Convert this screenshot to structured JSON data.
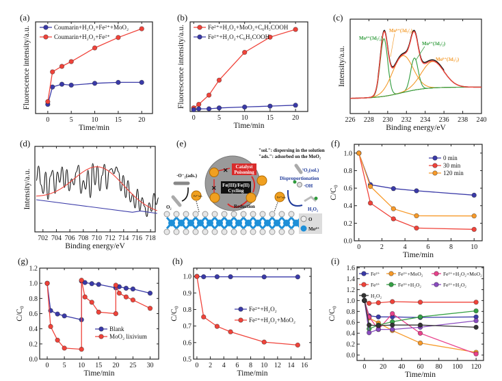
{
  "panel_labels": {
    "a": "(a)",
    "b": "(b)",
    "c": "(c)",
    "d": "(d)",
    "e": "(e)",
    "f": "(f)",
    "g": "(g)",
    "h": "(h)",
    "i": "(i)"
  },
  "chart_data": [
    {
      "panel": "a",
      "type": "line",
      "xlabel": "Time/min",
      "ylabel": "Fluorescence intensity/a.u.",
      "xlim": [
        -2.6,
        22.3
      ],
      "ylim": [
        0,
        100
      ],
      "x_ticks": [
        0,
        5,
        10,
        15,
        20
      ],
      "y_ticks": [],
      "legend": "top-left",
      "series": [
        {
          "name": "Coumarin+H₂O₂+Fe²⁺+MoO₂",
          "color": "#3a3aa8",
          "x": [
            0,
            1,
            3,
            5,
            10,
            15,
            20
          ],
          "y": [
            10,
            29,
            32,
            31,
            33,
            34,
            34
          ]
        },
        {
          "name": "Coumarin+H₂O₂+Fe²⁺",
          "color": "#f0433a",
          "x": [
            0,
            1,
            3,
            5,
            10,
            15,
            20
          ],
          "y": [
            13,
            45.5,
            51.5,
            56.7,
            71.6,
            83,
            92.5
          ]
        }
      ]
    },
    {
      "panel": "b",
      "type": "line",
      "xlabel": "Time/min",
      "ylabel": "Fluorescence intensity/a.u.",
      "xlim": [
        -0.7,
        22.4
      ],
      "ylim": [
        0,
        100
      ],
      "x_ticks": [
        0,
        5,
        10,
        15,
        20
      ],
      "y_ticks": [],
      "legend": "top-left",
      "series": [
        {
          "name": "Fe²⁺+H₂O₂+MoO₂+C₆H₅COOH",
          "color": "#f0433a",
          "x": [
            0,
            1,
            3,
            5,
            10,
            15,
            20
          ],
          "y": [
            4,
            8,
            18.3,
            35,
            66,
            83,
            91.6
          ]
        },
        {
          "name": "Fe²⁺+H₂O₂+C₆H₅COOH",
          "color": "#3a3aa8",
          "x": [
            0,
            1,
            3,
            5,
            10,
            15,
            20
          ],
          "y": [
            2,
            3,
            3,
            4,
            5,
            6,
            7
          ]
        }
      ]
    },
    {
      "panel": "c",
      "type": "line",
      "xlabel": "Binding energy/eV",
      "ylabel": "Intensity/a.u.",
      "xlim": [
        226,
        240
      ],
      "ylim": [
        0,
        100
      ],
      "x_ticks": [
        226,
        228,
        230,
        232,
        234,
        236,
        238,
        240
      ],
      "y_ticks": [],
      "background": {
        "low": 16,
        "high": 28,
        "center": 231.5,
        "width": 1.3,
        "color": "#3a9a3a"
      },
      "envelope_colors": {
        "raw": "#111111",
        "fit": "#f0433a"
      },
      "components": [
        {
          "label": "Mo⁴⁺(3d₅/₂)",
          "color": "#2e9a3a",
          "center": 229.6,
          "height": 61,
          "sigma": 0.4
        },
        {
          "label": "Mo⁶⁺(3d₅/₂)",
          "color": "#f39a2a",
          "center": 231.6,
          "height": 39,
          "sigma": 1.1
        },
        {
          "label": "Mo⁴⁺(3d₃/₂)",
          "color": "#2e9a3a",
          "center": 232.85,
          "height": 34,
          "sigma": 0.4
        },
        {
          "label": "Mo⁶⁺(3d₃/₂)",
          "color": "#f39a2a",
          "center": 234.8,
          "height": 28,
          "sigma": 1.2
        }
      ]
    },
    {
      "panel": "d",
      "type": "line",
      "xlabel": "Binding energy/eV",
      "ylabel": "Intensity/a.u.",
      "xlim": [
        700.8,
        718.7
      ],
      "ylim": [
        0,
        100
      ],
      "x_ticks": [
        702,
        704,
        706,
        708,
        710,
        712,
        714,
        716,
        718
      ],
      "y_ticks": [],
      "raw": {
        "color": "#111111",
        "x_start": 701,
        "x_step": 0.35,
        "y": [
          60,
          77,
          55,
          45,
          70,
          38,
          65,
          72,
          45,
          70,
          58,
          76,
          52,
          73,
          48,
          62,
          55,
          70,
          78,
          45,
          60,
          50,
          72,
          40,
          80,
          55,
          77,
          48,
          66,
          79,
          50,
          72,
          74,
          68,
          76,
          70,
          48,
          66,
          40,
          60,
          35,
          44,
          28,
          50,
          25,
          40,
          30,
          18,
          34,
          24,
          45,
          32,
          40
        ]
      },
      "fit": {
        "color": "#f0433a",
        "center": 710.3,
        "amplitude": 45.3,
        "sigma": 3.7,
        "baseline": [
          [
            701,
            40
          ],
          [
            719,
            22
          ]
        ]
      },
      "baseline": {
        "color": "#3a3aa8",
        "x": [
          701,
          715.3,
          716.5,
          719
        ],
        "y": [
          37.6,
          23,
          24.5,
          21.6
        ]
      }
    },
    {
      "panel": "f",
      "type": "line",
      "xlabel": "Time/min",
      "ylabel": "C/C₀",
      "xlim": [
        -0.4,
        10.7
      ],
      "ylim": [
        0,
        1.1
      ],
      "x_ticks": [
        0,
        2,
        4,
        6,
        8,
        10
      ],
      "y_ticks": [
        0.0,
        0.2,
        0.4,
        0.6,
        0.8,
        1.0
      ],
      "legend": "top-right",
      "series": [
        {
          "name": "0 min",
          "color": "#3a3aa8",
          "x": [
            0,
            1,
            3,
            5,
            10
          ],
          "y": [
            1.0,
            0.64,
            0.595,
            0.57,
            0.52
          ]
        },
        {
          "name": "30 min",
          "color": "#f0433a",
          "x": [
            0,
            1,
            3,
            5,
            10
          ],
          "y": [
            1.0,
            0.43,
            0.25,
            0.145,
            0.13
          ]
        },
        {
          "name": "120 min",
          "color": "#f79a2a",
          "x": [
            0,
            1,
            3,
            5,
            10
          ],
          "y": [
            1.0,
            0.62,
            0.365,
            0.285,
            0.283
          ]
        }
      ]
    },
    {
      "panel": "g",
      "type": "line",
      "xlabel": "Time/min",
      "ylabel": "C/C₀",
      "xlim": [
        -2.2,
        32.5
      ],
      "ylim": [
        0,
        1.2
      ],
      "x_ticks": [
        0,
        5,
        10,
        15,
        20,
        25,
        30
      ],
      "y_ticks": [
        0.0,
        0.2,
        0.4,
        0.6,
        0.8,
        1.0,
        1.2
      ],
      "legend": "bottom-right",
      "series": [
        {
          "name": "Blank",
          "color": "#3a3aa8",
          "x": [
            0,
            1,
            3,
            5,
            10,
            10,
            11,
            13,
            15,
            20,
            21,
            23,
            25,
            30
          ],
          "y": [
            1.0,
            0.64,
            0.595,
            0.57,
            0.52,
            1.03,
            1.01,
            0.995,
            0.985,
            0.94,
            0.955,
            0.935,
            0.925,
            0.87
          ]
        },
        {
          "name": "MoO₂ lixivium",
          "color": "#f0433a",
          "x": [
            0,
            1,
            3,
            5,
            10,
            10,
            11,
            13,
            15,
            20,
            20,
            21,
            23,
            25,
            30
          ],
          "y": [
            1.0,
            0.43,
            0.25,
            0.145,
            0.13,
            1.04,
            0.82,
            0.75,
            0.62,
            0.6,
            0.975,
            0.87,
            0.82,
            0.78,
            0.67
          ]
        }
      ]
    },
    {
      "panel": "h",
      "type": "line",
      "xlabel": "Time/min",
      "ylabel": "C/C₀",
      "xlim": [
        -0.5,
        17
      ],
      "ylim": [
        0.5,
        1.05
      ],
      "x_ticks": [
        0,
        2,
        4,
        6,
        8,
        10,
        12,
        14,
        16
      ],
      "y_ticks": [
        0.5,
        0.6,
        0.7,
        0.8,
        0.9,
        1.0
      ],
      "legend": "center-right",
      "series": [
        {
          "name": "Fe²⁺+H₂O₂",
          "color": "#3a3aa8",
          "x": [
            0,
            1,
            3,
            5,
            10,
            15
          ],
          "y": [
            1.0,
            0.998,
            0.998,
            0.998,
            0.997,
            0.997
          ]
        },
        {
          "name": "Fe²⁺+H₂O₂+MoO₂",
          "color": "#f0433a",
          "x": [
            0,
            1,
            3,
            5,
            10,
            15
          ],
          "y": [
            1.0,
            0.755,
            0.698,
            0.665,
            0.603,
            0.585
          ]
        }
      ]
    },
    {
      "panel": "i",
      "type": "line",
      "xlabel": "Time/min",
      "ylabel": "C/C₀",
      "xlim": [
        -8,
        128
      ],
      "ylim": [
        -0.1,
        1.62
      ],
      "x_ticks": [
        0,
        20,
        40,
        60,
        80,
        100,
        120
      ],
      "y_ticks": [
        0.0,
        0.2,
        0.4,
        0.6,
        0.8,
        1.0,
        1.2,
        1.4,
        1.6
      ],
      "legend": "top",
      "series": [
        {
          "name": "Fe²⁺",
          "color": "#3a3aa8",
          "x": [
            0,
            5,
            15,
            30,
            60,
            120
          ],
          "y": [
            1.0,
            0.72,
            0.7,
            0.7,
            0.69,
            0.7
          ]
        },
        {
          "name": "Fe²⁺+MoO₂",
          "color": "#f79a2a",
          "x": [
            0,
            5,
            15,
            30,
            60,
            120
          ],
          "y": [
            1.0,
            0.68,
            0.59,
            0.45,
            0.22,
            0.05
          ]
        },
        {
          "name": "Fe²⁺+H₂O₂+MoO₂",
          "color": "#e8428c",
          "x": [
            0,
            5,
            15,
            30,
            60,
            120
          ],
          "y": [
            1.0,
            0.7,
            0.47,
            0.76,
            0.4,
            0.02
          ]
        },
        {
          "name": "Fe³⁺",
          "color": "#f0433a",
          "x": [
            0,
            5,
            15,
            30,
            60,
            120
          ],
          "y": [
            1.0,
            0.95,
            0.96,
            0.98,
            0.97,
            0.97
          ]
        },
        {
          "name": "Fe³⁺+H₂O₂",
          "color": "#35a045",
          "x": [
            0,
            5,
            15,
            30,
            60,
            120
          ],
          "y": [
            1.0,
            0.48,
            0.55,
            0.61,
            0.7,
            0.81
          ]
        },
        {
          "name": "Fe²⁺+H₂O₂",
          "color": "#8a4cc0",
          "x": [
            0,
            5,
            15,
            30,
            60,
            120
          ],
          "y": [
            1.0,
            0.41,
            0.47,
            0.47,
            0.51,
            0.63
          ]
        },
        {
          "name": "H₂O₂",
          "color": "#333333",
          "x": [
            0,
            5,
            15,
            30,
            60,
            120
          ],
          "y": [
            1.0,
            0.55,
            0.54,
            0.55,
            0.55,
            0.51
          ]
        }
      ]
    }
  ],
  "scheme": {
    "note_sol": "\"sol.\": dispersing in the solution",
    "note_ads": "\"ads.\": adsorbed on the MoO₂",
    "catalyst_poisoning_1": "Catalyst",
    "catalyst_poisoning_2": "Poisoning",
    "cycling_1": "Fe(III)/Fe(II)",
    "cycling_2": "Cycling",
    "reduction": "Reduction",
    "disproportionation": "Disproportionation",
    "singlet_oxygen": "¹O₂(sol.)",
    "hydroxyl": "·OH",
    "h2o2": "H₂O₂",
    "superoxide": "·O⁻₂(ads.)",
    "o2": "O₂",
    "fe3_ads": "Fe³⁺ads",
    "fe2_ads": "Fe²⁺ads",
    "legend_o": "O",
    "legend_mo": "Mo⁴⁺",
    "colors": {
      "lattice_mo": "#1e8fd8",
      "lattice_o": "#e8e8e8",
      "fe_ball": "#f0a020",
      "poison_box": "#d92c2c",
      "cycle_circle": "#9a9a9a",
      "arrow_red": "#d92c2c",
      "arrow_blue": "#1f3a9a"
    }
  }
}
